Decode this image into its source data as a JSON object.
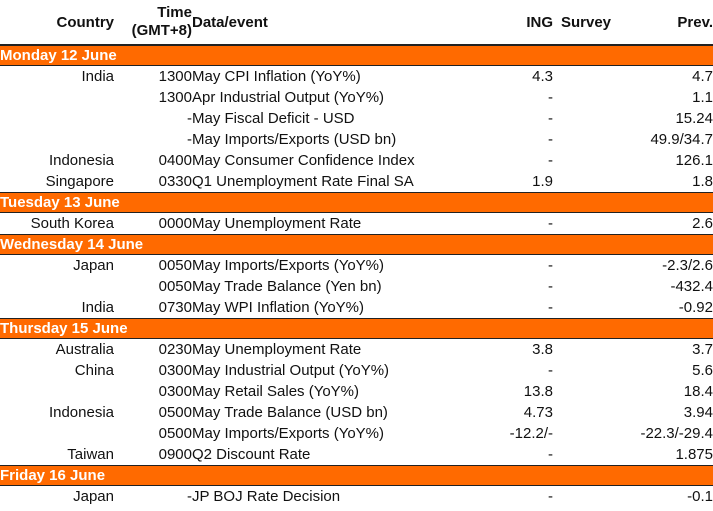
{
  "columns": {
    "country": "Country",
    "time_line1": "Time",
    "time_line2": "(GMT+8)",
    "event": "Data/event",
    "ing": "ING",
    "survey": "Survey",
    "prev": "Prev."
  },
  "days": [
    {
      "label": "Monday 12 June",
      "rows": [
        {
          "country": "India",
          "time": "1300",
          "event": "May CPI Inflation (YoY%)",
          "ing": "4.3",
          "survey": "",
          "prev": "4.7"
        },
        {
          "country": "",
          "time": "1300",
          "event": "Apr Industrial Output (YoY%)",
          "ing": "-",
          "survey": "",
          "prev": "1.1"
        },
        {
          "country": "",
          "time": "-",
          "event": "May Fiscal Deficit - USD",
          "ing": "-",
          "survey": "",
          "prev": "15.24"
        },
        {
          "country": "",
          "time": "-",
          "event": "May Imports/Exports (USD bn)",
          "ing": "-",
          "survey": "",
          "prev": "49.9/34.7"
        },
        {
          "country": "Indonesia",
          "time": "0400",
          "event": "May Consumer Confidence Index",
          "ing": "-",
          "survey": "",
          "prev": "126.1"
        },
        {
          "country": "Singapore",
          "time": "0330",
          "event": "Q1 Unemployment Rate Final SA",
          "ing": "1.9",
          "survey": "",
          "prev": "1.8"
        }
      ]
    },
    {
      "label": "Tuesday 13 June",
      "rows": [
        {
          "country": "South Korea",
          "time": "0000",
          "event": "May Unemployment Rate",
          "ing": "-",
          "survey": "",
          "prev": "2.6"
        }
      ]
    },
    {
      "label": "Wednesday 14 June",
      "rows": [
        {
          "country": "Japan",
          "time": "0050",
          "event": "May Imports/Exports (YoY%)",
          "ing": "-",
          "survey": "",
          "prev": "-2.3/2.6"
        },
        {
          "country": "",
          "time": "0050",
          "event": "May Trade Balance (Yen bn)",
          "ing": "-",
          "survey": "",
          "prev": "-432.4"
        },
        {
          "country": "India",
          "time": "0730",
          "event": "May WPI Inflation (YoY%)",
          "ing": "-",
          "survey": "",
          "prev": "-0.92"
        }
      ]
    },
    {
      "label": "Thursday 15 June",
      "rows": [
        {
          "country": "Australia",
          "time": "0230",
          "event": "May Unemployment Rate",
          "ing": "3.8",
          "survey": "",
          "prev": "3.7"
        },
        {
          "country": "China",
          "time": "0300",
          "event": "May Industrial Output (YoY%)",
          "ing": "-",
          "survey": "",
          "prev": "5.6"
        },
        {
          "country": "",
          "time": "0300",
          "event": "May Retail Sales (YoY%)",
          "ing": "13.8",
          "survey": "",
          "prev": "18.4"
        },
        {
          "country": "Indonesia",
          "time": "0500",
          "event": "May Trade Balance (USD bn)",
          "ing": "4.73",
          "survey": "",
          "prev": "3.94"
        },
        {
          "country": "",
          "time": "0500",
          "event": "May Imports/Exports (YoY%)",
          "ing": "-12.2/-",
          "survey": "",
          "prev": "-22.3/-29.4"
        },
        {
          "country": "Taiwan",
          "time": "0900",
          "event": "Q2 Discount Rate",
          "ing": "-",
          "survey": "",
          "prev": "1.875"
        }
      ]
    },
    {
      "label": "Friday 16 June",
      "rows": [
        {
          "country": "Japan",
          "time": "-",
          "event": "JP BOJ Rate Decision",
          "ing": "-",
          "survey": "",
          "prev": "-0.1"
        }
      ]
    }
  ]
}
